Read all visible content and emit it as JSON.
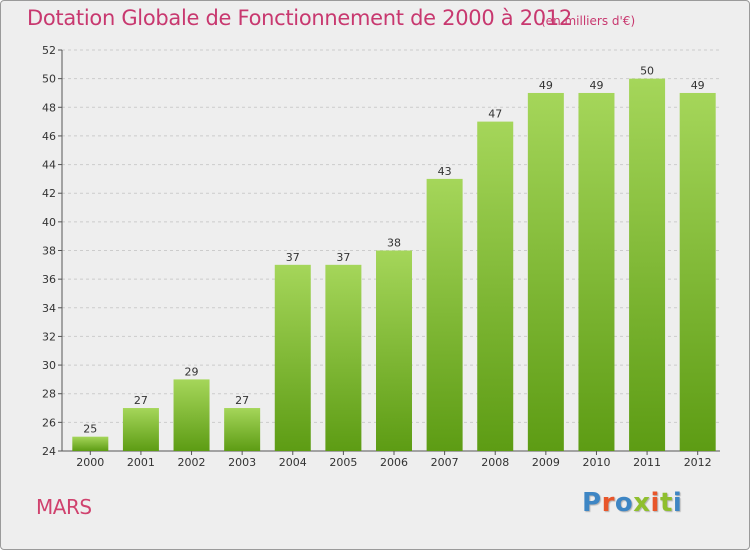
{
  "header": {
    "title": "Dotation Globale de Fonctionnement de 2000 à 2012",
    "unit": "(en milliers d'€)"
  },
  "footer": {
    "commune": "MARS",
    "logo_text": "Proxiti",
    "logo_colors": [
      "#3e86c4",
      "#e8562a",
      "#3e86c4",
      "#8fbf2e",
      "#e8562a",
      "#8fbf2e",
      "#3e86c4"
    ]
  },
  "colors": {
    "bar_light": "#a5d65a",
    "bar_dark": "#5d9c14",
    "title": "#c8386f",
    "grid": "#cccccc"
  },
  "chart_data": {
    "type": "bar",
    "title": "Dotation Globale de Fonctionnement de 2000 à 2012",
    "categories": [
      "2000",
      "2001",
      "2002",
      "2003",
      "2004",
      "2005",
      "2006",
      "2007",
      "2008",
      "2009",
      "2010",
      "2011",
      "2012"
    ],
    "values": [
      25,
      27,
      29,
      27,
      37,
      37,
      38,
      43,
      47,
      49,
      49,
      50,
      49
    ],
    "ylim": [
      24,
      52
    ],
    "yticks": [
      24,
      26,
      28,
      30,
      32,
      34,
      36,
      38,
      40,
      42,
      44,
      46,
      48,
      50,
      52
    ],
    "grid": true,
    "legend": "none"
  }
}
